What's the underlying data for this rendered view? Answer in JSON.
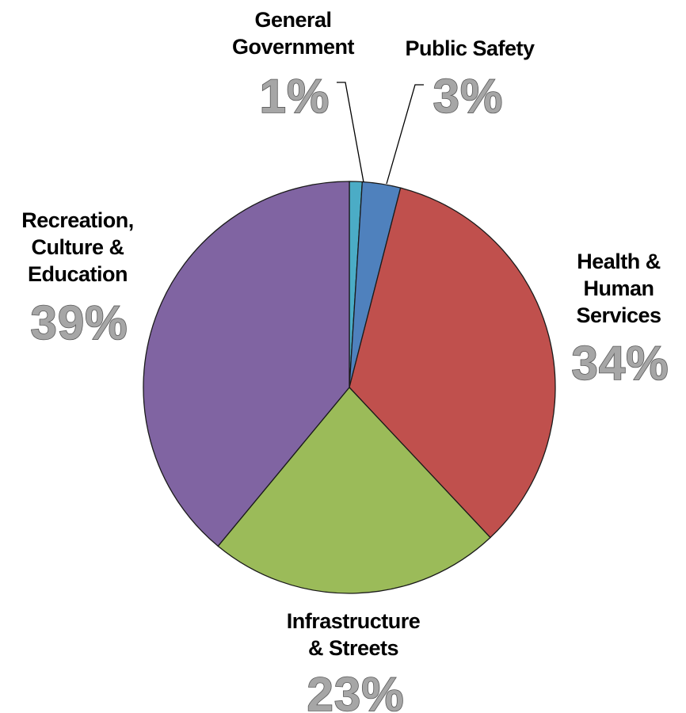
{
  "chart_data": {
    "type": "pie",
    "title": "",
    "slices": [
      {
        "label": [
          "General",
          "Government"
        ],
        "value": 1,
        "percent_label": "1%",
        "color": "#4bacc6"
      },
      {
        "label": [
          "Public Safety"
        ],
        "value": 3,
        "percent_label": "3%",
        "color": "#4f81bd"
      },
      {
        "label": [
          "Health &",
          "Human",
          "Services"
        ],
        "value": 34,
        "percent_label": "34%",
        "color": "#c0504d"
      },
      {
        "label": [
          "Infrastructure",
          "& Streets"
        ],
        "value": 23,
        "percent_label": "23%",
        "color": "#9bbb59"
      },
      {
        "label": [
          "Recreation,",
          "Culture &",
          "Education"
        ],
        "value": 39,
        "percent_label": "39%",
        "color": "#8064a2"
      }
    ],
    "start_position": "top",
    "direction": "clockwise",
    "legend": "none"
  }
}
